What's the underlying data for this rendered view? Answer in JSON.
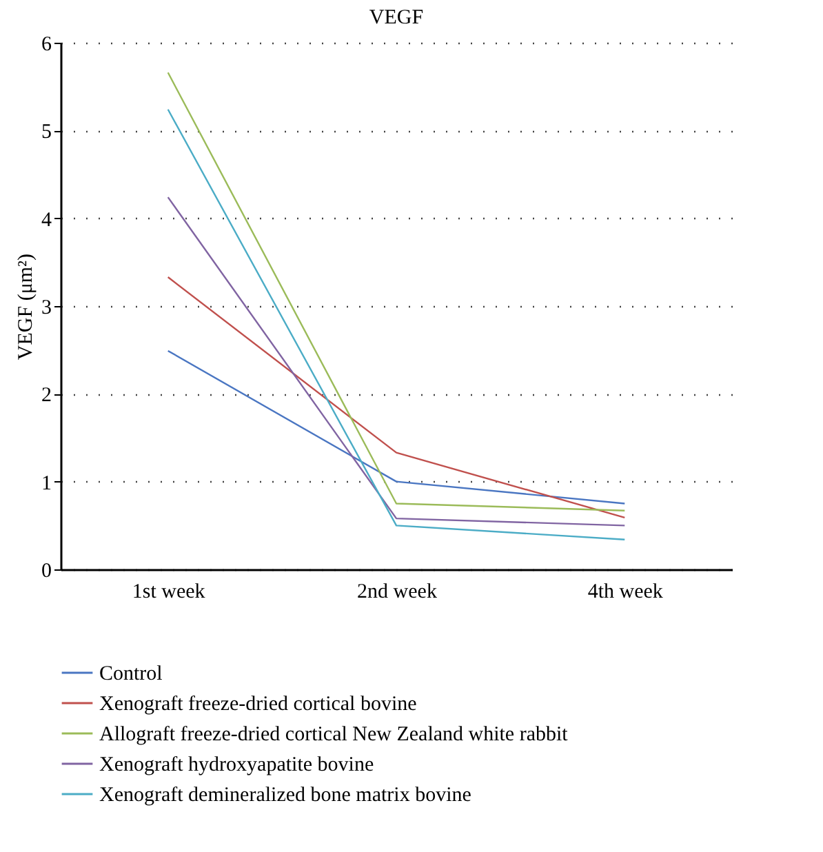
{
  "chart_data": {
    "type": "line",
    "title": "VEGF",
    "ylabel": "VEGF (μm²)",
    "categories": [
      "1st week",
      "2nd week",
      "4th week"
    ],
    "series": [
      {
        "name": "Control",
        "color": "#4a76c2",
        "values": [
          2.49,
          1.0,
          0.75
        ]
      },
      {
        "name": "Xenograft freeze-dried cortical bovine",
        "color": "#c0504d",
        "values": [
          3.33,
          1.33,
          0.59
        ]
      },
      {
        "name": "Allograft freeze-dried cortical New Zealand white rabbit",
        "color": "#9bbb59",
        "values": [
          5.66,
          0.75,
          0.67
        ]
      },
      {
        "name": "Xenograft hydroxyapatite bovine",
        "color": "#8064a2",
        "values": [
          4.24,
          0.58,
          0.5
        ]
      },
      {
        "name": "Xenograft demineralized bone matrix bovine",
        "color": "#4bacc6",
        "values": [
          5.24,
          0.5,
          0.34
        ]
      }
    ],
    "ylim": [
      0,
      6
    ],
    "yticks": [
      0,
      1,
      2,
      3,
      4,
      5,
      6
    ],
    "grid": "y",
    "legend": "bottom",
    "line_style": "solid"
  }
}
